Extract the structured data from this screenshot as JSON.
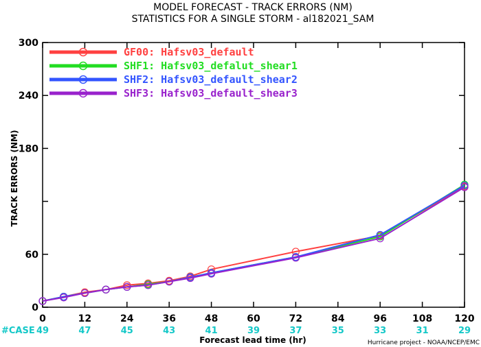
{
  "chart_data": {
    "type": "line",
    "title": "MODEL FORECAST - TRACK ERRORS (NM)",
    "subtitle": "STATISTICS FOR A SINGLE STORM - al182021_SAM",
    "xlabel": "Forecast lead time (hr)",
    "ylabel": "TRACK ERRORS (NM)",
    "xlim": [
      0,
      120
    ],
    "ylim": [
      0,
      300
    ],
    "xticks": [
      0,
      12,
      24,
      36,
      48,
      60,
      72,
      84,
      96,
      108,
      120
    ],
    "yticks": [
      0,
      60,
      120,
      180,
      240,
      300
    ],
    "ytick_labels": [
      "0",
      "60",
      "",
      "180",
      "240",
      "300"
    ],
    "grid": false,
    "legend_position": "top-left",
    "case_label": "#CASE",
    "cases": [
      "49",
      "47",
      "45",
      "43",
      "41",
      "39",
      "37",
      "35",
      "33",
      "31",
      "29"
    ],
    "credit": "Hurricane project - NOAA/NCEP/EMC",
    "series": [
      {
        "name": "GF00: Hafsv03_default",
        "color": "#ff4040",
        "x": [
          0,
          6,
          12,
          18,
          24,
          30,
          36,
          42,
          48,
          72,
          96,
          120
        ],
        "y": [
          7,
          12,
          17,
          20,
          25,
          27,
          30,
          35,
          43,
          63,
          81,
          137
        ]
      },
      {
        "name": "SHF1: Hafsv03_defalut_shear1",
        "color": "#22dd22",
        "x": [
          0,
          6,
          12,
          18,
          24,
          30,
          36,
          42,
          48,
          72,
          96,
          120
        ],
        "y": [
          7,
          12,
          16,
          20,
          23,
          26,
          29,
          34,
          39,
          57,
          80,
          139
        ]
      },
      {
        "name": "SHF2: Hafsv03_default_shear2",
        "color": "#3355ff",
        "x": [
          0,
          6,
          12,
          18,
          24,
          30,
          36,
          42,
          48,
          72,
          96,
          120
        ],
        "y": [
          7,
          12,
          16,
          20,
          23,
          25,
          29,
          34,
          39,
          57,
          82,
          138
        ]
      },
      {
        "name": "SHF3: Hafsv03_default_shear3",
        "color": "#9922cc",
        "x": [
          0,
          6,
          12,
          18,
          24,
          30,
          36,
          42,
          48,
          72,
          96,
          120
        ],
        "y": [
          7,
          11,
          16,
          20,
          23,
          25,
          29,
          33,
          38,
          56,
          78,
          136
        ]
      }
    ]
  }
}
